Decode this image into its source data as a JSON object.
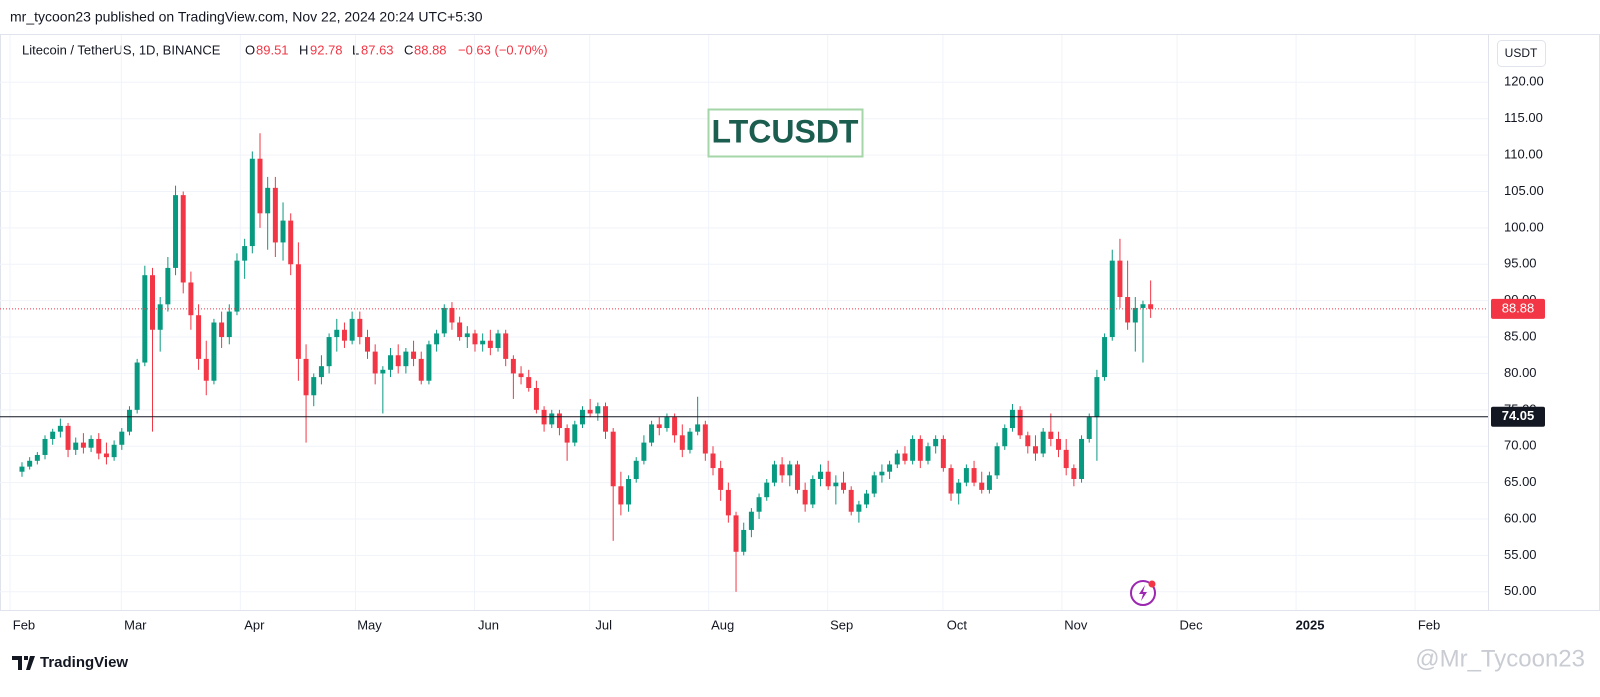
{
  "header": {
    "publisher": "mr_tycoon23 published on TradingView.com, Nov 22, 2024 20:24 UTC+5:30"
  },
  "chart_data": {
    "type": "candlestick",
    "symbol": "Litecoin / TetherUS, 1D, BINANCE",
    "legend": {
      "o_label": "O",
      "open": 89.51,
      "h_label": "H",
      "high": 92.78,
      "l_label": "L",
      "low": 87.63,
      "c_label": "C",
      "close": 88.88,
      "change": "−0.63 (−0.70%)"
    },
    "annotation": "LTCUSDT",
    "currency": "USDT",
    "up_color": "#089981",
    "down_color": "#f23645",
    "grid": true,
    "xlim": [
      -2.6,
      385
    ],
    "ylim": [
      47.5,
      126.5
    ],
    "xticks": [
      {
        "value": 0,
        "label": "Feb"
      },
      {
        "value": 29,
        "label": "Mar"
      },
      {
        "value": 60,
        "label": "Apr"
      },
      {
        "value": 90,
        "label": "May"
      },
      {
        "value": 121,
        "label": "Jun"
      },
      {
        "value": 151,
        "label": "Jul"
      },
      {
        "value": 182,
        "label": "Aug"
      },
      {
        "value": 213,
        "label": "Sep"
      },
      {
        "value": 243,
        "label": "Oct"
      },
      {
        "value": 274,
        "label": "Nov"
      },
      {
        "value": 304,
        "label": "Dec"
      },
      {
        "value": 335,
        "label": "2025"
      },
      {
        "value": 366,
        "label": "Feb"
      }
    ],
    "yticks": [
      {
        "value": 50,
        "label": "50.00"
      },
      {
        "value": 55,
        "label": "55.00"
      },
      {
        "value": 60,
        "label": "60.00"
      },
      {
        "value": 65,
        "label": "65.00"
      },
      {
        "value": 70,
        "label": "70.00"
      },
      {
        "value": 75,
        "label": "75.00"
      },
      {
        "value": 80,
        "label": "80.00"
      },
      {
        "value": 85,
        "label": "85.00"
      },
      {
        "value": 90,
        "label": "90.00"
      },
      {
        "value": 95,
        "label": "95.00"
      },
      {
        "value": 100,
        "label": "100.00"
      },
      {
        "value": 105,
        "label": "105.00"
      },
      {
        "value": 110,
        "label": "110.00"
      },
      {
        "value": 115,
        "label": "115.00"
      },
      {
        "value": 120,
        "label": "120.00"
      }
    ],
    "hline": 74.05,
    "hline_color": "#131722",
    "last_price": 88.88,
    "x": [
      0,
      2,
      4,
      6,
      8,
      10,
      12,
      14,
      16,
      18,
      20,
      22,
      24,
      26,
      28,
      30,
      32,
      34,
      36,
      38,
      40,
      42,
      44,
      46,
      48,
      50,
      52,
      54,
      56,
      58,
      60,
      62,
      64,
      66,
      68,
      70,
      72,
      74,
      76,
      78,
      80,
      82,
      84,
      86,
      88,
      90,
      92,
      94,
      96,
      98,
      100,
      102,
      104,
      106,
      108,
      110,
      112,
      114,
      116,
      118,
      120,
      122,
      124,
      126,
      128,
      130,
      132,
      134,
      136,
      138,
      140,
      142,
      144,
      146,
      148,
      150,
      152,
      154,
      156,
      158,
      160,
      162,
      164,
      166,
      168,
      170,
      172,
      174,
      176,
      178,
      180,
      182,
      184,
      186,
      188,
      190,
      192,
      194,
      196,
      198,
      200,
      202,
      204,
      206,
      208,
      210,
      212,
      214,
      216,
      218,
      220,
      222,
      224,
      226,
      228,
      230,
      232,
      234,
      236,
      238,
      240,
      242,
      244,
      246,
      248,
      250,
      252,
      254,
      256,
      258,
      260,
      262,
      264,
      266,
      268,
      270,
      272,
      274,
      276,
      278,
      280,
      282,
      284,
      286,
      288,
      290,
      292,
      294
    ],
    "ohlc": [
      [
        66.5,
        67.8,
        65.8,
        67.2
      ],
      [
        67.2,
        68.5,
        66.8,
        68.0
      ],
      [
        68.0,
        69.2,
        67.5,
        68.8
      ],
      [
        68.8,
        71.5,
        68.2,
        71.0
      ],
      [
        71.0,
        72.4,
        70.2,
        72.0
      ],
      [
        72.0,
        73.8,
        71.2,
        72.8
      ],
      [
        72.8,
        73.2,
        68.5,
        69.5
      ],
      [
        69.5,
        71.2,
        68.8,
        70.5
      ],
      [
        70.5,
        71.8,
        69.0,
        69.8
      ],
      [
        69.8,
        71.5,
        69.2,
        71.0
      ],
      [
        71.0,
        71.8,
        68.2,
        69.0
      ],
      [
        69.0,
        70.5,
        67.5,
        68.5
      ],
      [
        68.5,
        70.8,
        68.0,
        70.2
      ],
      [
        70.2,
        72.5,
        69.5,
        72.0
      ],
      [
        72.0,
        75.5,
        71.5,
        75.0
      ],
      [
        75.0,
        82.0,
        74.5,
        81.5
      ],
      [
        81.5,
        94.8,
        81.0,
        93.5
      ],
      [
        93.5,
        94.5,
        72.0,
        86.0
      ],
      [
        86.0,
        90.5,
        83.0,
        89.5
      ],
      [
        89.5,
        96.0,
        88.5,
        94.5
      ],
      [
        94.5,
        105.8,
        93.5,
        104.5
      ],
      [
        104.5,
        105.0,
        91.0,
        92.5
      ],
      [
        92.5,
        94.0,
        86.0,
        88.0
      ],
      [
        88.0,
        89.5,
        80.5,
        82.0
      ],
      [
        82.0,
        84.5,
        77.0,
        79.0
      ],
      [
        79.0,
        87.5,
        78.5,
        87.0
      ],
      [
        87.0,
        88.5,
        83.5,
        85.0
      ],
      [
        85.0,
        89.5,
        84.0,
        88.5
      ],
      [
        88.5,
        96.5,
        88.0,
        95.5
      ],
      [
        95.5,
        98.5,
        93.0,
        97.5
      ],
      [
        97.5,
        110.5,
        96.5,
        109.5
      ],
      [
        109.5,
        113.0,
        100.0,
        102.0
      ],
      [
        102.0,
        107.0,
        97.0,
        105.5
      ],
      [
        105.5,
        107.0,
        96.0,
        98.0
      ],
      [
        98.0,
        103.5,
        95.5,
        101.0
      ],
      [
        101.0,
        102.0,
        93.5,
        95.0
      ],
      [
        95.0,
        98.0,
        79.0,
        82.0
      ],
      [
        82.0,
        84.0,
        70.5,
        77.0
      ],
      [
        77.0,
        80.0,
        75.5,
        79.5
      ],
      [
        79.5,
        82.5,
        78.5,
        81.0
      ],
      [
        81.0,
        85.5,
        80.0,
        85.0
      ],
      [
        85.0,
        87.5,
        83.0,
        86.0
      ],
      [
        86.0,
        87.0,
        83.5,
        84.5
      ],
      [
        84.5,
        88.5,
        84.0,
        87.5
      ],
      [
        87.5,
        88.5,
        84.0,
        85.0
      ],
      [
        85.0,
        86.0,
        82.0,
        83.0
      ],
      [
        83.0,
        84.0,
        78.5,
        80.0
      ],
      [
        80.0,
        81.0,
        74.5,
        80.5
      ],
      [
        80.5,
        83.5,
        79.5,
        82.5
      ],
      [
        82.5,
        84.0,
        80.0,
        81.0
      ],
      [
        81.0,
        83.5,
        80.0,
        83.0
      ],
      [
        83.0,
        84.5,
        81.0,
        82.0
      ],
      [
        82.0,
        83.0,
        78.5,
        79.0
      ],
      [
        79.0,
        84.5,
        78.5,
        84.0
      ],
      [
        84.0,
        86.0,
        83.0,
        85.5
      ],
      [
        85.5,
        89.5,
        85.0,
        89.0
      ],
      [
        89.0,
        89.8,
        86.0,
        87.0
      ],
      [
        87.0,
        87.8,
        84.5,
        85.0
      ],
      [
        85.0,
        86.5,
        83.5,
        85.5
      ],
      [
        85.5,
        86.0,
        83.0,
        84.0
      ],
      [
        84.0,
        85.5,
        83.0,
        84.5
      ],
      [
        84.5,
        86.0,
        82.5,
        83.5
      ],
      [
        83.5,
        86.0,
        83.0,
        85.5
      ],
      [
        85.5,
        86.0,
        81.0,
        82.0
      ],
      [
        82.0,
        82.5,
        76.5,
        80.0
      ],
      [
        80.0,
        81.0,
        78.5,
        79.5
      ],
      [
        79.5,
        80.5,
        77.5,
        78.0
      ],
      [
        78.0,
        79.0,
        74.5,
        75.0
      ],
      [
        75.0,
        75.5,
        72.0,
        73.0
      ],
      [
        73.0,
        75.0,
        72.5,
        74.5
      ],
      [
        74.5,
        75.0,
        71.5,
        72.5
      ],
      [
        72.5,
        73.0,
        68.0,
        70.5
      ],
      [
        70.5,
        73.5,
        70.0,
        73.0
      ],
      [
        73.0,
        75.5,
        72.5,
        75.0
      ],
      [
        75.0,
        76.5,
        74.0,
        74.5
      ],
      [
        74.5,
        76.0,
        73.5,
        75.5
      ],
      [
        75.5,
        76.0,
        71.0,
        72.0
      ],
      [
        72.0,
        72.5,
        57.0,
        64.5
      ],
      [
        64.5,
        66.5,
        60.5,
        62.0
      ],
      [
        62.0,
        66.0,
        61.0,
        65.5
      ],
      [
        65.5,
        68.5,
        65.0,
        68.0
      ],
      [
        68.0,
        71.5,
        67.5,
        70.5
      ],
      [
        70.5,
        73.5,
        70.0,
        73.0
      ],
      [
        73.0,
        74.0,
        71.5,
        72.5
      ],
      [
        72.5,
        74.5,
        72.0,
        74.0
      ],
      [
        74.0,
        74.5,
        70.5,
        71.5
      ],
      [
        71.5,
        73.0,
        68.5,
        69.5
      ],
      [
        69.5,
        72.5,
        69.0,
        72.0
      ],
      [
        72.0,
        76.8,
        71.5,
        73.0
      ],
      [
        73.0,
        73.5,
        68.0,
        69.0
      ],
      [
        69.0,
        70.0,
        66.0,
        67.0
      ],
      [
        67.0,
        68.0,
        62.5,
        64.0
      ],
      [
        64.0,
        65.0,
        59.5,
        60.5
      ],
      [
        60.5,
        61.0,
        50.0,
        55.5
      ],
      [
        55.5,
        59.5,
        55.0,
        58.5
      ],
      [
        58.5,
        61.5,
        57.5,
        61.0
      ],
      [
        61.0,
        63.5,
        60.0,
        63.0
      ],
      [
        63.0,
        65.5,
        62.5,
        65.0
      ],
      [
        65.0,
        68.0,
        64.5,
        67.5
      ],
      [
        67.5,
        68.5,
        65.0,
        66.0
      ],
      [
        66.0,
        68.0,
        64.5,
        67.5
      ],
      [
        67.5,
        68.0,
        63.5,
        64.0
      ],
      [
        64.0,
        65.0,
        61.0,
        62.0
      ],
      [
        62.0,
        66.0,
        61.5,
        65.5
      ],
      [
        65.5,
        67.5,
        64.5,
        66.5
      ],
      [
        66.5,
        68.0,
        64.0,
        64.5
      ],
      [
        64.5,
        66.0,
        62.0,
        65.0
      ],
      [
        65.0,
        66.5,
        63.5,
        64.0
      ],
      [
        64.0,
        64.5,
        60.5,
        61.0
      ],
      [
        61.0,
        62.5,
        59.5,
        62.0
      ],
      [
        62.0,
        64.0,
        61.5,
        63.5
      ],
      [
        63.5,
        66.5,
        63.0,
        66.0
      ],
      [
        66.0,
        67.5,
        65.0,
        66.5
      ],
      [
        66.5,
        68.0,
        65.5,
        67.5
      ],
      [
        67.5,
        69.5,
        67.0,
        69.0
      ],
      [
        69.0,
        70.0,
        67.5,
        68.0
      ],
      [
        68.0,
        71.5,
        67.5,
        71.0
      ],
      [
        71.0,
        71.5,
        67.0,
        68.0
      ],
      [
        68.0,
        70.5,
        67.5,
        70.0
      ],
      [
        70.0,
        71.5,
        69.0,
        71.0
      ],
      [
        71.0,
        71.5,
        66.5,
        67.0
      ],
      [
        67.0,
        67.5,
        62.5,
        63.5
      ],
      [
        63.5,
        65.5,
        62.0,
        65.0
      ],
      [
        65.0,
        67.5,
        64.5,
        67.0
      ],
      [
        67.0,
        68.0,
        64.5,
        65.0
      ],
      [
        65.0,
        66.5,
        63.5,
        64.0
      ],
      [
        64.0,
        66.5,
        63.5,
        66.0
      ],
      [
        66.0,
        70.5,
        65.5,
        70.0
      ],
      [
        70.0,
        73.0,
        69.5,
        72.5
      ],
      [
        72.5,
        75.8,
        72.0,
        75.0
      ],
      [
        75.0,
        75.5,
        71.0,
        71.5
      ],
      [
        71.5,
        72.0,
        69.0,
        70.0
      ],
      [
        70.0,
        71.5,
        68.0,
        69.0
      ],
      [
        69.0,
        72.5,
        68.5,
        72.0
      ],
      [
        72.0,
        74.5,
        70.0,
        71.0
      ],
      [
        71.0,
        72.0,
        68.5,
        69.5
      ],
      [
        69.5,
        71.0,
        66.0,
        67.0
      ],
      [
        67.0,
        67.5,
        64.5,
        65.5
      ],
      [
        65.5,
        71.5,
        65.0,
        71.0
      ],
      [
        71.0,
        74.5,
        70.5,
        74.0
      ],
      [
        74.0,
        80.5,
        68.0,
        79.5
      ],
      [
        79.5,
        85.5,
        79.0,
        85.0
      ],
      [
        85.0,
        97.0,
        84.5,
        95.5
      ],
      [
        95.5,
        98.5,
        89.0,
        90.5
      ],
      [
        90.5,
        95.5,
        86.0,
        87.0
      ],
      [
        87.0,
        90.5,
        83.0,
        89.0
      ],
      [
        89.0,
        90.0,
        81.5,
        89.51
      ],
      [
        89.51,
        92.78,
        87.63,
        88.88
      ]
    ]
  },
  "footer": {
    "brand": "TradingView",
    "watermark": "@Mr_Tycoon23"
  }
}
